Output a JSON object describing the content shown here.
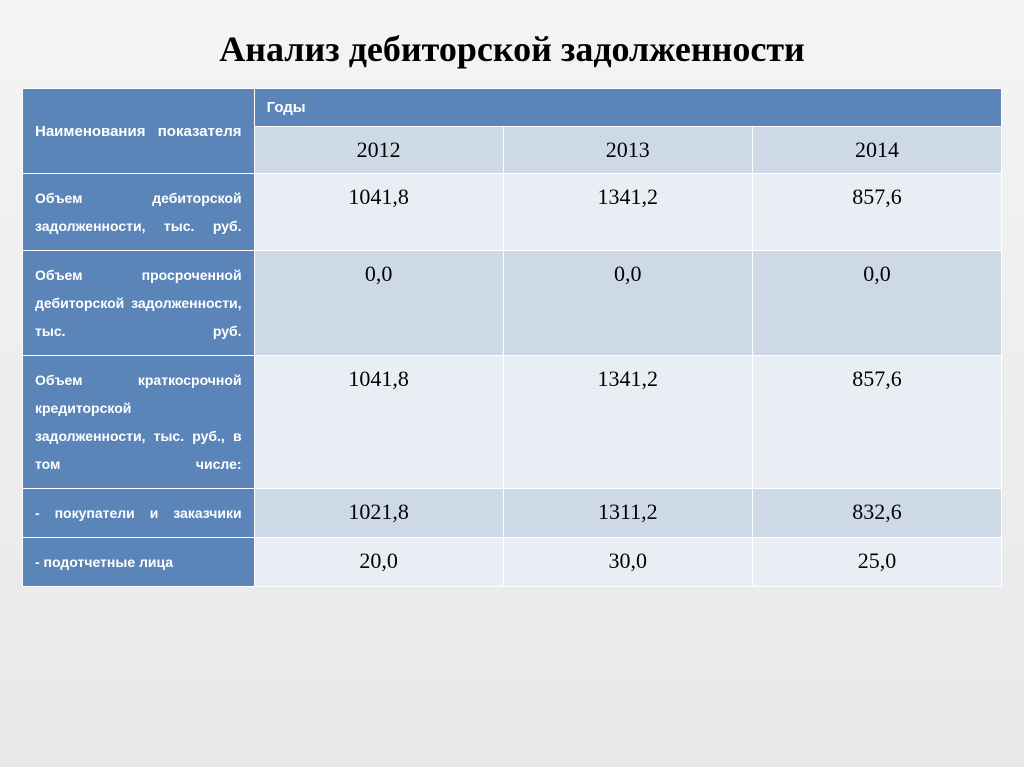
{
  "title": "Анализ дебиторской задолженности",
  "table": {
    "header": {
      "indicator_label": "Наименования показателя",
      "years_label": "Годы",
      "years": [
        "2012",
        "2013",
        "2014"
      ]
    },
    "rows": [
      {
        "label": "Объем дебиторской задолженности, тыс. руб.",
        "justified": true,
        "band": "a",
        "values": [
          "1041,8",
          "1341,2",
          "857,6"
        ]
      },
      {
        "label": "Объем просроченной дебиторской задолженности, тыс. руб.",
        "justified": true,
        "band": "b",
        "values": [
          "0,0",
          "0,0",
          "0,0"
        ]
      },
      {
        "label": "Объем краткосрочной кредиторской задолженности, тыс. руб., в том числе:",
        "justified": true,
        "band": "a",
        "values": [
          "1041,8",
          "1341,2",
          "857,6"
        ]
      },
      {
        "label": "- покупатели и заказчики",
        "justified": true,
        "band": "b",
        "values": [
          "1021,8",
          "1311,2",
          "832,6"
        ]
      },
      {
        "label": "- подотчетные лица",
        "justified": false,
        "band": "a",
        "values": [
          "20,0",
          "30,0",
          "25,0"
        ]
      }
    ]
  },
  "colors": {
    "header_bg": "#5b85b9",
    "header_fg": "#ffffff",
    "band_a": "#e9eef5",
    "band_b": "#ced9e7",
    "cell_border": "#ffffff",
    "text": "#000000",
    "slide_bg_top": "#f4f4f4",
    "slide_bg_bottom": "#e8e8e8"
  },
  "fonts": {
    "title_family": "Times New Roman",
    "title_size_pt": 28,
    "data_family": "Times New Roman",
    "data_size_pt": 17,
    "label_family": "Arial",
    "label_size_pt": 11
  }
}
